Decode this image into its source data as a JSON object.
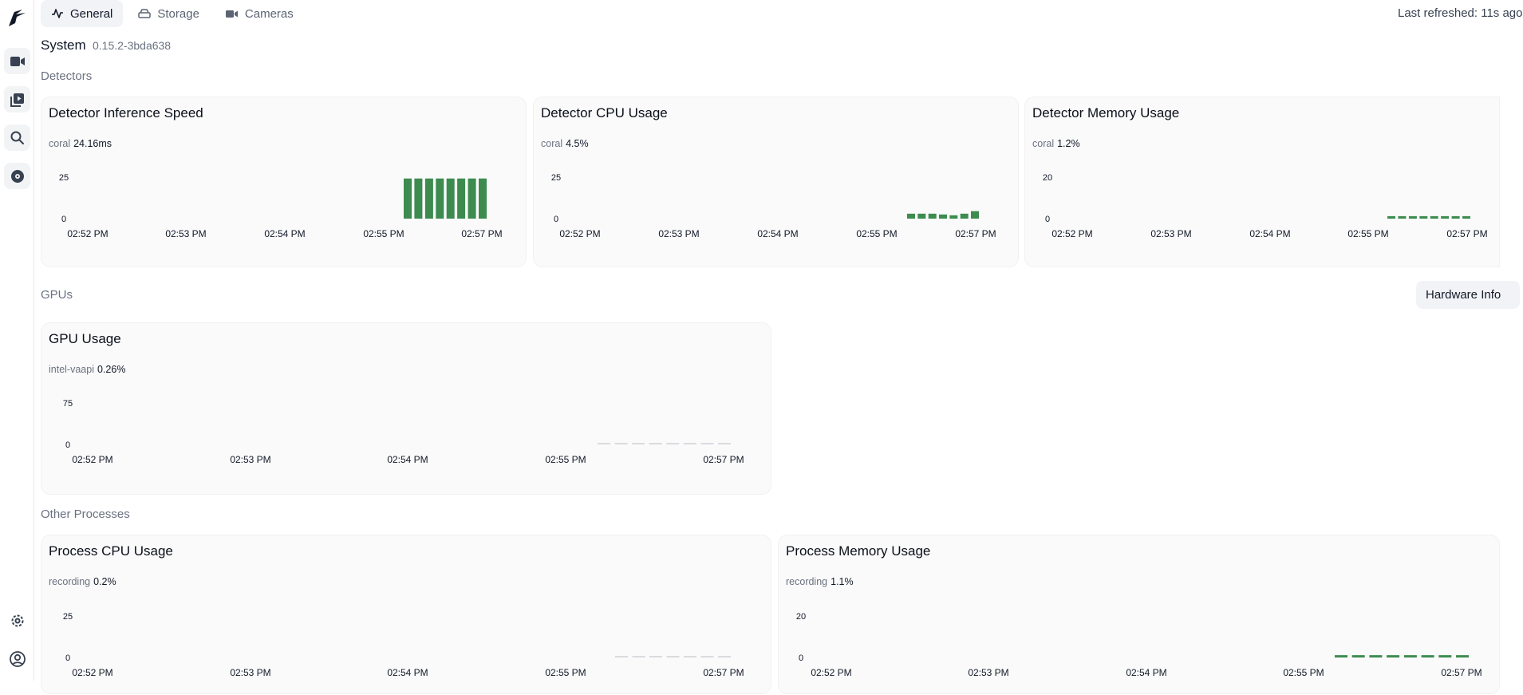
{
  "nav": {
    "logo_icon": "frigate-bird-logo-icon",
    "items": [
      {
        "name": "live",
        "icon": "video-camera-icon"
      },
      {
        "name": "review",
        "icon": "play-library-icon"
      },
      {
        "name": "explore",
        "icon": "search-icon"
      },
      {
        "name": "export",
        "icon": "disc-icon"
      }
    ],
    "bottom": [
      {
        "name": "settings",
        "icon": "gear-icon"
      },
      {
        "name": "account",
        "icon": "user-circle-icon"
      }
    ]
  },
  "tabs": [
    {
      "label": "General",
      "icon": "activity-icon",
      "active": true
    },
    {
      "label": "Storage",
      "icon": "hard-drive-icon",
      "active": false
    },
    {
      "label": "Cameras",
      "icon": "video-icon",
      "active": false
    }
  ],
  "header": {
    "last_refreshed": "Last refreshed: 11s ago"
  },
  "system": {
    "title": "System",
    "version": "0.15.2-3bda638"
  },
  "sections": {
    "detectors": "Detectors",
    "gpus": "GPUs",
    "other": "Other Processes",
    "hardware_info_button": "Hardware Info"
  },
  "colors": {
    "bar_green": "#3d8b4f",
    "bar_gray": "#d9dbdf",
    "card_bg": "#fafafa"
  },
  "chart_data": [
    {
      "id": "detector-inference-speed",
      "type": "bar",
      "title": "Detector Inference Speed",
      "legend_name": "coral",
      "legend_value": "24.16ms",
      "y_ticks": [
        "25",
        "0"
      ],
      "ylim": [
        0,
        25
      ],
      "x_ticks": [
        "02:52 PM",
        "02:53 PM",
        "02:54 PM",
        "02:55 PM",
        "02:57 PM"
      ],
      "values": [
        24.2,
        24.2,
        24.2,
        24.2,
        24.2,
        24.2,
        24.2,
        24.2
      ],
      "color": "#3d8b4f"
    },
    {
      "id": "detector-cpu-usage",
      "type": "bar",
      "title": "Detector CPU Usage",
      "legend_name": "coral",
      "legend_value": "4.5%",
      "y_ticks": [
        "25",
        "0"
      ],
      "ylim": [
        0,
        25
      ],
      "x_ticks": [
        "02:52 PM",
        "02:53 PM",
        "02:54 PM",
        "02:55 PM",
        "02:57 PM"
      ],
      "values": [
        3,
        3,
        3,
        2.5,
        2,
        3,
        4.5
      ],
      "color": "#3d8b4f"
    },
    {
      "id": "detector-memory-usage",
      "type": "bar",
      "title": "Detector Memory Usage",
      "legend_name": "coral",
      "legend_value": "1.2%",
      "y_ticks": [
        "20",
        "0"
      ],
      "ylim": [
        0,
        20
      ],
      "x_ticks": [
        "02:52 PM",
        "02:53 PM",
        "02:54 PM",
        "02:55 PM",
        "02:57 PM"
      ],
      "values": [
        1.2,
        1.2,
        1.2,
        1.2,
        1.2,
        1.2,
        1.2,
        1.2
      ],
      "color": "#3d8b4f"
    },
    {
      "id": "gpu-usage",
      "type": "bar",
      "title": "GPU Usage",
      "legend_name": "intel-vaapi",
      "legend_value": "0.26%",
      "y_ticks": [
        "75",
        "0"
      ],
      "ylim": [
        0,
        75
      ],
      "x_ticks": [
        "02:52 PM",
        "02:53 PM",
        "02:54 PM",
        "02:55 PM",
        "02:57 PM"
      ],
      "values": [
        0.3,
        0.3,
        0.3,
        0.3,
        0.3,
        0.5,
        0.3,
        0.3
      ],
      "color": "#d9dbdf"
    },
    {
      "id": "process-cpu-usage",
      "type": "bar",
      "title": "Process CPU Usage",
      "legend_name": "recording",
      "legend_value": "0.2%",
      "y_ticks": [
        "25",
        "0"
      ],
      "ylim": [
        0,
        25
      ],
      "x_ticks": [
        "02:52 PM",
        "02:53 PM",
        "02:54 PM",
        "02:55 PM",
        "02:57 PM"
      ],
      "values": [
        0.2,
        0.2,
        0.3,
        0.3,
        0.3,
        0.2,
        0.2
      ],
      "color": "#d9dbdf"
    },
    {
      "id": "process-memory-usage",
      "type": "bar",
      "title": "Process Memory Usage",
      "legend_name": "recording",
      "legend_value": "1.1%",
      "y_ticks": [
        "20",
        "0"
      ],
      "ylim": [
        0,
        20
      ],
      "x_ticks": [
        "02:52 PM",
        "02:53 PM",
        "02:54 PM",
        "02:55 PM",
        "02:57 PM"
      ],
      "values": [
        1.1,
        1.1,
        1.1,
        1.1,
        1.1,
        1.1,
        1.1,
        1.1
      ],
      "color": "#3d8b4f"
    }
  ]
}
